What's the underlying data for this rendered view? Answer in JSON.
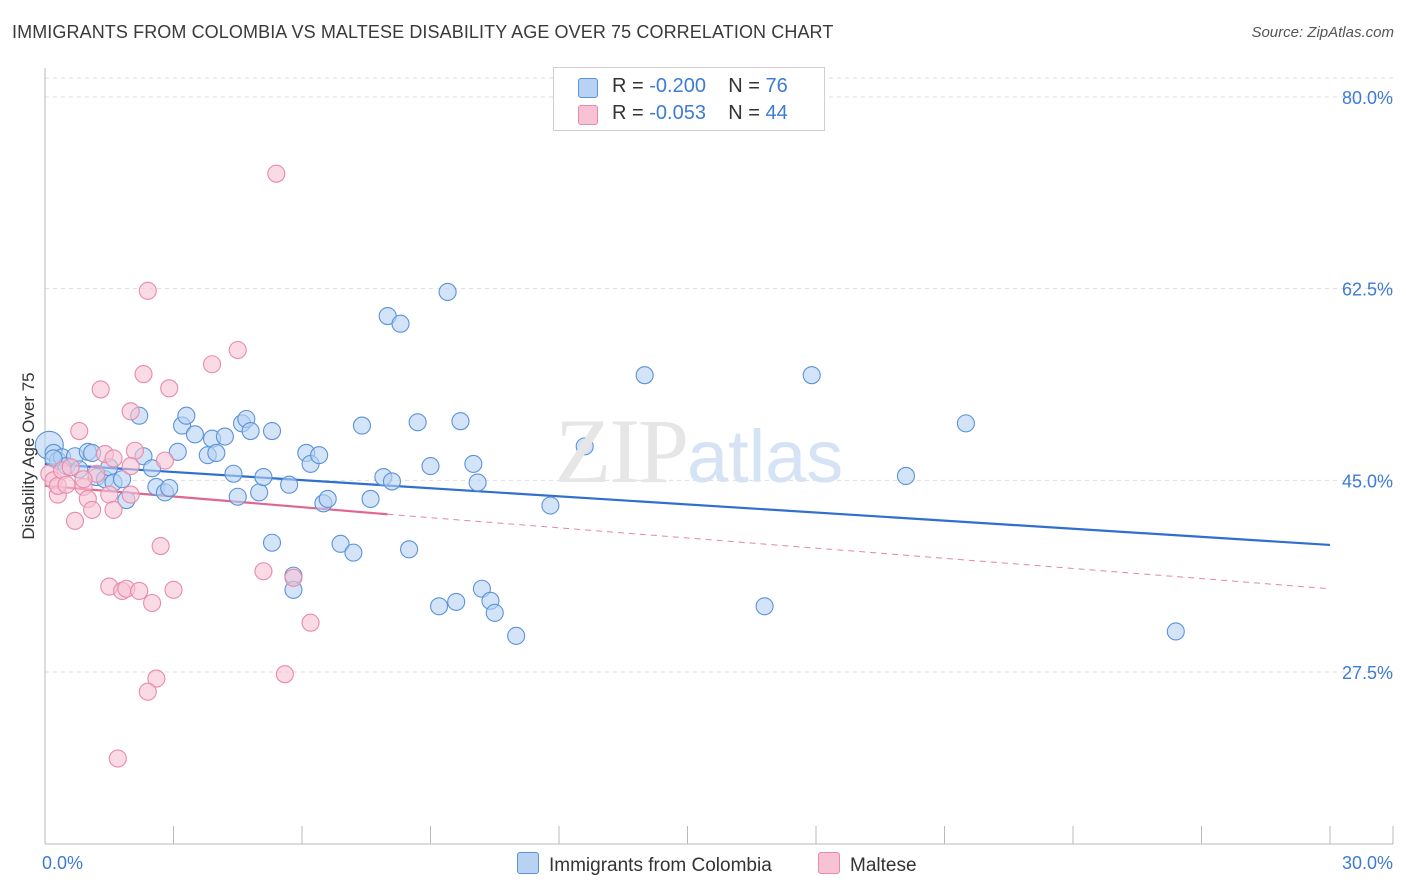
{
  "title": "IMMIGRANTS FROM COLOMBIA VS MALTESE DISABILITY AGE OVER 75 CORRELATION CHART",
  "source": "Source: ZipAtlas.com",
  "watermark": {
    "zip": "ZIP",
    "atlas": "atlas"
  },
  "legend": {
    "rows": [
      {
        "r_label": "R = ",
        "r_value": "-0.200",
        "n_label": "N = ",
        "n_value": "76"
      },
      {
        "r_label": "R = ",
        "r_value": "-0.053",
        "n_label": "N = ",
        "n_value": "44"
      }
    ]
  },
  "colors": {
    "blue_fill": "#b7d2f3",
    "blue_stroke": "#5b93d8",
    "blue_line": "#2f6fd0",
    "pink_fill": "#f7c3d4",
    "pink_stroke": "#e98aa9",
    "pink_line": "#e0668f",
    "grid": "#dddddd",
    "tick": "#3d7bd6"
  },
  "chart_data": {
    "type": "scatter",
    "xlabel": "",
    "ylabel": "Disability Age Over 75",
    "xlim": [
      0,
      30
    ],
    "ylim": [
      10,
      82
    ],
    "x_ticks": [
      "0.0%",
      "30.0%"
    ],
    "y_ticks": [
      {
        "value": 27.5,
        "label": "27.5%"
      },
      {
        "value": 45.0,
        "label": "45.0%"
      },
      {
        "value": 62.5,
        "label": "62.5%"
      },
      {
        "value": 80.0,
        "label": "80.0%"
      }
    ],
    "grid": true,
    "series": [
      {
        "name": "Immigrants from Colombia",
        "color": "blue",
        "trend": {
          "x0": 0,
          "y0": 46.5,
          "x1": 30,
          "y1": 39.1,
          "dashed_from": null
        },
        "points": [
          [
            0.1,
            48.2
          ],
          [
            0.2,
            47.5
          ],
          [
            0.3,
            46.8
          ],
          [
            0.4,
            47.1
          ],
          [
            0.5,
            46.3
          ],
          [
            0.7,
            47.2
          ],
          [
            0.8,
            46.0
          ],
          [
            1.0,
            47.6
          ],
          [
            1.1,
            47.5
          ],
          [
            1.2,
            45.3
          ],
          [
            1.4,
            45.1
          ],
          [
            1.5,
            46.2
          ],
          [
            1.6,
            44.8
          ],
          [
            1.8,
            45.1
          ],
          [
            1.9,
            43.2
          ],
          [
            2.2,
            50.9
          ],
          [
            2.3,
            47.2
          ],
          [
            2.5,
            46.1
          ],
          [
            2.6,
            44.4
          ],
          [
            2.8,
            43.9
          ],
          [
            2.9,
            44.3
          ],
          [
            3.1,
            47.6
          ],
          [
            3.2,
            50.0
          ],
          [
            3.3,
            50.9
          ],
          [
            3.5,
            49.2
          ],
          [
            3.8,
            47.3
          ],
          [
            3.9,
            48.8
          ],
          [
            4.0,
            47.5
          ],
          [
            4.2,
            49.0
          ],
          [
            4.4,
            45.6
          ],
          [
            4.5,
            43.5
          ],
          [
            4.6,
            50.2
          ],
          [
            4.7,
            50.6
          ],
          [
            4.8,
            49.5
          ],
          [
            5.0,
            43.9
          ],
          [
            5.1,
            45.3
          ],
          [
            5.3,
            49.5
          ],
          [
            5.7,
            44.6
          ],
          [
            5.3,
            39.3
          ],
          [
            5.8,
            36.3
          ],
          [
            5.8,
            35.0
          ],
          [
            6.1,
            47.5
          ],
          [
            6.2,
            46.5
          ],
          [
            6.4,
            47.3
          ],
          [
            6.5,
            42.9
          ],
          [
            6.6,
            43.3
          ],
          [
            6.9,
            39.2
          ],
          [
            7.2,
            38.4
          ],
          [
            7.4,
            50.0
          ],
          [
            7.6,
            43.3
          ],
          [
            7.9,
            45.3
          ],
          [
            8.1,
            44.9
          ],
          [
            8.0,
            60.0
          ],
          [
            8.3,
            59.3
          ],
          [
            8.5,
            38.7
          ],
          [
            8.7,
            50.3
          ],
          [
            9.0,
            46.3
          ],
          [
            9.2,
            33.5
          ],
          [
            9.4,
            62.2
          ],
          [
            9.6,
            33.9
          ],
          [
            9.7,
            50.4
          ],
          [
            10.0,
            46.5
          ],
          [
            10.1,
            44.8
          ],
          [
            10.2,
            35.1
          ],
          [
            10.4,
            34.0
          ],
          [
            10.5,
            32.9
          ],
          [
            11.0,
            30.8
          ],
          [
            11.8,
            42.7
          ],
          [
            12.6,
            48.1
          ],
          [
            14.0,
            54.6
          ],
          [
            16.8,
            33.5
          ],
          [
            17.9,
            54.6
          ],
          [
            20.1,
            45.4
          ],
          [
            21.5,
            50.2
          ],
          [
            26.4,
            31.2
          ],
          [
            0.2,
            47.0
          ]
        ]
      },
      {
        "name": "Maltese",
        "color": "pink",
        "trend": {
          "x0": 0,
          "y0": 44.5,
          "x1": 8,
          "y1": 41.9,
          "dashed_to_x": 30,
          "dashed_to_y": 35.1
        },
        "points": [
          [
            0.1,
            45.6
          ],
          [
            0.2,
            45.0
          ],
          [
            0.3,
            43.7
          ],
          [
            0.3,
            44.5
          ],
          [
            0.4,
            45.9
          ],
          [
            0.5,
            44.6
          ],
          [
            0.6,
            46.2
          ],
          [
            0.7,
            41.3
          ],
          [
            0.8,
            49.5
          ],
          [
            0.9,
            44.4
          ],
          [
            1.0,
            43.3
          ],
          [
            1.1,
            42.3
          ],
          [
            1.3,
            53.3
          ],
          [
            1.4,
            47.4
          ],
          [
            1.5,
            43.7
          ],
          [
            1.5,
            35.3
          ],
          [
            1.6,
            42.3
          ],
          [
            1.7,
            19.6
          ],
          [
            1.8,
            34.9
          ],
          [
            1.9,
            35.1
          ],
          [
            2.0,
            43.7
          ],
          [
            2.0,
            51.3
          ],
          [
            2.1,
            47.7
          ],
          [
            2.2,
            34.9
          ],
          [
            2.3,
            54.7
          ],
          [
            2.4,
            62.3
          ],
          [
            2.5,
            33.8
          ],
          [
            2.6,
            26.9
          ],
          [
            2.7,
            39.0
          ],
          [
            2.8,
            46.8
          ],
          [
            2.9,
            53.4
          ],
          [
            2.4,
            25.7
          ],
          [
            3.0,
            35.0
          ],
          [
            3.9,
            55.6
          ],
          [
            4.5,
            56.9
          ],
          [
            5.1,
            36.7
          ],
          [
            5.4,
            73.0
          ],
          [
            5.6,
            27.3
          ],
          [
            5.8,
            36.1
          ],
          [
            6.2,
            32.0
          ],
          [
            1.2,
            45.6
          ],
          [
            0.9,
            45.1
          ],
          [
            2.0,
            46.3
          ],
          [
            1.6,
            47.0
          ]
        ]
      }
    ]
  },
  "bottom_legend": [
    {
      "label": "Immigrants from Colombia",
      "color": "blue"
    },
    {
      "label": "Maltese",
      "color": "pink"
    }
  ]
}
